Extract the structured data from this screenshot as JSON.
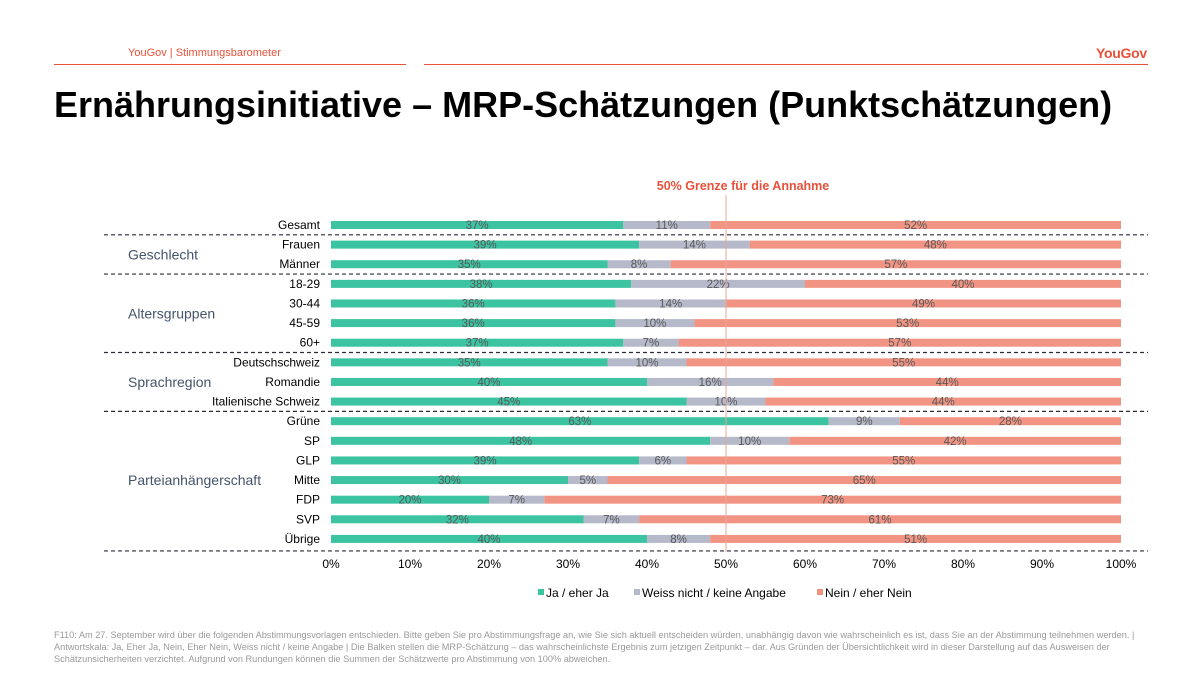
{
  "header": {
    "left_text": "YouGov | Stimmungsbarometer",
    "logo_text": "YouGov"
  },
  "title": "Ernährungsinitiative – MRP-Schätzungen (Punktschätzungen)",
  "colors": {
    "ja": "#3cc3a1",
    "weiss_nicht": "#b5b9c9",
    "nein": "#f29483",
    "accent": "#e8513a"
  },
  "chart_data": {
    "type": "bar",
    "orientation": "horizontal",
    "stacked": true,
    "annotation": "50% Grenze für die Annahme",
    "reference_line": 50,
    "xlim": [
      0,
      100
    ],
    "x_ticks": [
      "0%",
      "10%",
      "20%",
      "30%",
      "40%",
      "50%",
      "60%",
      "70%",
      "80%",
      "90%",
      "100%"
    ],
    "categories": [
      "Gesamt",
      "Frauen",
      "Männer",
      "18-29",
      "30-44",
      "45-59",
      "60+",
      "Deutschschweiz",
      "Romandie",
      "Italienische Schweiz",
      "Grüne",
      "SP",
      "GLP",
      "Mitte",
      "FDP",
      "SVP",
      "Übrige"
    ],
    "groups": [
      {
        "label": "",
        "rows": [
          "Gesamt"
        ]
      },
      {
        "label": "Geschlecht",
        "rows": [
          "Frauen",
          "Männer"
        ]
      },
      {
        "label": "Altersgruppen",
        "rows": [
          "18-29",
          "30-44",
          "45-59",
          "60+"
        ]
      },
      {
        "label": "Sprachregion",
        "rows": [
          "Deutschschweiz",
          "Romandie",
          "Italienische Schweiz"
        ]
      },
      {
        "label": "Parteianhängerschaft",
        "rows": [
          "Grüne",
          "SP",
          "GLP",
          "Mitte",
          "FDP",
          "SVP",
          "Übrige"
        ]
      }
    ],
    "series": [
      {
        "name": "Ja / eher Ja",
        "values": [
          37,
          39,
          35,
          38,
          36,
          36,
          37,
          35,
          40,
          45,
          63,
          48,
          39,
          30,
          20,
          32,
          40
        ]
      },
      {
        "name": "Weiss nicht / keine Angabe",
        "values": [
          11,
          14,
          8,
          22,
          14,
          10,
          7,
          10,
          16,
          10,
          9,
          10,
          6,
          5,
          7,
          7,
          8
        ]
      },
      {
        "name": "Nein / eher Nein",
        "values": [
          52,
          48,
          57,
          40,
          49,
          53,
          57,
          55,
          44,
          44,
          28,
          42,
          55,
          65,
          73,
          61,
          51
        ]
      }
    ]
  },
  "footnote": "F110: Am 27. September wird über die folgenden Abstimmungsvorlagen entschieden. Bitte geben Sie pro Abstimmungsfrage an, wie Sie sich aktuell entscheiden würden, unabhängig davon wie wahrscheinlich es ist, dass Sie an der Abstimmung teilnehmen werden. | Antwortskala: Ja, Eher Ja, Nein, Eher Nein, Weiss nicht / keine Angabe | Die Balken stellen die MRP-Schätzung – das wahrscheinlichste Ergebnis zum jetzigen Zeitpunkt – dar. Aus Gründen der Übersichtlichkeit wird in dieser Darstellung auf das Ausweisen der Schätzunsicherheiten verzichtet. Aufgrund von Rundungen können die Summen der Schätzwerte pro Abstimmung von 100% abweichen."
}
